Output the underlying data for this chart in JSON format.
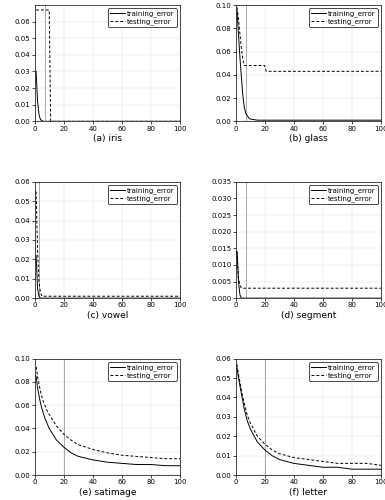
{
  "panels": [
    {
      "label": "(a) iris",
      "ylim": [
        0,
        0.07
      ],
      "yticks": [
        0,
        0.01,
        0.02,
        0.03,
        0.04,
        0.05,
        0.06
      ],
      "vline_x": 7,
      "train": {
        "x": [
          1,
          2,
          3,
          4,
          5,
          6,
          7,
          8,
          9,
          10,
          100
        ],
        "y": [
          0.03,
          0.012,
          0.004,
          0.001,
          0.0005,
          0.0,
          0.0,
          0.0,
          0.0,
          0.0,
          0.0
        ]
      },
      "test": {
        "x": [
          1,
          2,
          3,
          4,
          5,
          6,
          7,
          8,
          9,
          10,
          11,
          100
        ],
        "y": [
          0.067,
          0.067,
          0.067,
          0.067,
          0.067,
          0.067,
          0.067,
          0.067,
          0.067,
          0.067,
          0.0,
          0.0
        ]
      }
    },
    {
      "label": "(b) glass",
      "ylim": [
        0,
        0.1
      ],
      "yticks": [
        0,
        0.02,
        0.04,
        0.06,
        0.08,
        0.1
      ],
      "vline_x": 7,
      "train": {
        "x": [
          1,
          2,
          3,
          4,
          5,
          6,
          7,
          8,
          9,
          10,
          15,
          20,
          25,
          100
        ],
        "y": [
          0.095,
          0.075,
          0.055,
          0.038,
          0.022,
          0.012,
          0.007,
          0.005,
          0.003,
          0.002,
          0.001,
          0.001,
          0.001,
          0.001
        ]
      },
      "test": {
        "x": [
          1,
          2,
          3,
          4,
          5,
          6,
          7,
          8,
          9,
          10,
          14,
          15,
          20,
          21,
          100
        ],
        "y": [
          0.098,
          0.088,
          0.075,
          0.063,
          0.053,
          0.048,
          0.048,
          0.048,
          0.048,
          0.048,
          0.048,
          0.048,
          0.048,
          0.043,
          0.043
        ]
      }
    },
    {
      "label": "(c) vowel",
      "ylim": [
        0,
        0.06
      ],
      "yticks": [
        0,
        0.01,
        0.02,
        0.03,
        0.04,
        0.05,
        0.06
      ],
      "vline_x": 3,
      "train": {
        "x": [
          1,
          2,
          3,
          4,
          5,
          6,
          7,
          8,
          9,
          10,
          100
        ],
        "y": [
          0.022,
          0.005,
          0.001,
          0.0,
          0.0,
          0.0,
          0.0,
          0.0,
          0.0,
          0.0,
          0.0
        ]
      },
      "test": {
        "x": [
          1,
          2,
          3,
          4,
          5,
          6,
          7,
          8,
          9,
          10,
          100
        ],
        "y": [
          0.055,
          0.025,
          0.008,
          0.003,
          0.001,
          0.001,
          0.001,
          0.001,
          0.001,
          0.001,
          0.001
        ]
      }
    },
    {
      "label": "(d) segment",
      "ylim": [
        0,
        0.035
      ],
      "yticks": [
        0,
        0.005,
        0.01,
        0.015,
        0.02,
        0.025,
        0.03,
        0.035
      ],
      "vline_x": 7,
      "train": {
        "x": [
          1,
          2,
          3,
          4,
          5,
          6,
          7,
          8,
          9,
          10,
          100
        ],
        "y": [
          0.014,
          0.005,
          0.001,
          0.0,
          0.0,
          0.0,
          0.0,
          0.0,
          0.0,
          0.0,
          0.0
        ]
      },
      "test": {
        "x": [
          1,
          2,
          3,
          4,
          5,
          6,
          7,
          8,
          9,
          10,
          100
        ],
        "y": [
          0.014,
          0.006,
          0.004,
          0.003,
          0.003,
          0.003,
          0.003,
          0.003,
          0.003,
          0.003,
          0.003
        ]
      }
    },
    {
      "label": "(e) satimage",
      "ylim": [
        0,
        0.1
      ],
      "yticks": [
        0,
        0.02,
        0.04,
        0.06,
        0.08,
        0.1
      ],
      "vline_x": 20,
      "train": {
        "x": [
          1,
          2,
          3,
          4,
          5,
          6,
          7,
          8,
          9,
          10,
          15,
          20,
          25,
          30,
          40,
          50,
          60,
          70,
          80,
          90,
          100
        ],
        "y": [
          0.085,
          0.075,
          0.068,
          0.062,
          0.057,
          0.053,
          0.049,
          0.046,
          0.043,
          0.04,
          0.03,
          0.024,
          0.019,
          0.016,
          0.013,
          0.011,
          0.01,
          0.009,
          0.009,
          0.008,
          0.008
        ]
      },
      "test": {
        "x": [
          1,
          2,
          3,
          4,
          5,
          6,
          7,
          8,
          9,
          10,
          15,
          20,
          25,
          30,
          40,
          50,
          60,
          70,
          80,
          90,
          100
        ],
        "y": [
          0.093,
          0.085,
          0.078,
          0.072,
          0.067,
          0.063,
          0.06,
          0.057,
          0.054,
          0.052,
          0.042,
          0.035,
          0.03,
          0.026,
          0.022,
          0.019,
          0.017,
          0.016,
          0.015,
          0.014,
          0.014
        ]
      }
    },
    {
      "label": "(f) letter",
      "ylim": [
        0,
        0.06
      ],
      "yticks": [
        0,
        0.01,
        0.02,
        0.03,
        0.04,
        0.05,
        0.06
      ],
      "vline_x": 20,
      "train": {
        "x": [
          1,
          2,
          3,
          4,
          5,
          6,
          7,
          8,
          9,
          10,
          15,
          20,
          25,
          30,
          40,
          50,
          60,
          70,
          80,
          90,
          100
        ],
        "y": [
          0.055,
          0.05,
          0.046,
          0.042,
          0.038,
          0.034,
          0.031,
          0.028,
          0.026,
          0.024,
          0.017,
          0.013,
          0.01,
          0.008,
          0.006,
          0.005,
          0.004,
          0.004,
          0.003,
          0.003,
          0.003
        ]
      },
      "test": {
        "x": [
          1,
          2,
          3,
          4,
          5,
          6,
          7,
          8,
          9,
          10,
          15,
          20,
          25,
          30,
          40,
          50,
          60,
          70,
          80,
          90,
          100
        ],
        "y": [
          0.057,
          0.052,
          0.048,
          0.044,
          0.04,
          0.037,
          0.034,
          0.031,
          0.029,
          0.027,
          0.02,
          0.016,
          0.013,
          0.011,
          0.009,
          0.008,
          0.007,
          0.006,
          0.006,
          0.006,
          0.005
        ]
      }
    }
  ],
  "xlim": [
    0,
    100
  ],
  "xticks": [
    0,
    20,
    40,
    60,
    80,
    100
  ],
  "line_color": "#000000",
  "vline_color": "#aaaaaa",
  "bg_color": "#ffffff",
  "legend_fontsize": 5.0,
  "tick_fontsize": 5.0,
  "label_fontsize": 6.5
}
